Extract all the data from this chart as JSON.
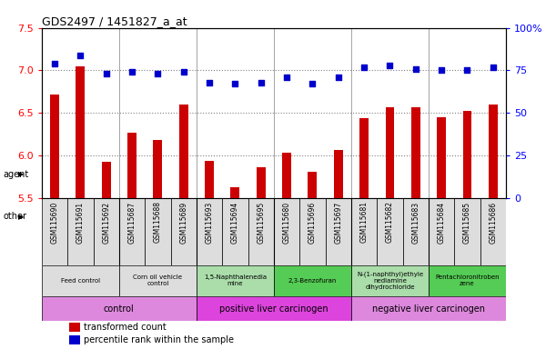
{
  "title": "GDS2497 / 1451827_a_at",
  "samples": [
    "GSM115690",
    "GSM115691",
    "GSM115692",
    "GSM115687",
    "GSM115688",
    "GSM115689",
    "GSM115693",
    "GSM115694",
    "GSM115695",
    "GSM115680",
    "GSM115696",
    "GSM115697",
    "GSM115681",
    "GSM115682",
    "GSM115683",
    "GSM115684",
    "GSM115685",
    "GSM115686"
  ],
  "transformed_count": [
    6.72,
    7.05,
    5.93,
    6.27,
    6.18,
    6.6,
    5.94,
    5.63,
    5.86,
    6.03,
    5.81,
    6.06,
    6.44,
    6.57,
    6.57,
    6.45,
    6.52,
    6.6
  ],
  "percentile_rank": [
    79,
    84,
    73,
    74,
    73,
    74,
    68,
    67,
    68,
    71,
    67,
    71,
    77,
    78,
    76,
    75,
    75,
    77
  ],
  "ylim_left": [
    5.5,
    7.5
  ],
  "ylim_right": [
    0,
    100
  ],
  "yticks_left": [
    5.5,
    6.0,
    6.5,
    7.0,
    7.5
  ],
  "yticks_right": [
    0,
    25,
    50,
    75,
    100
  ],
  "bar_color": "#cc0000",
  "dot_color": "#0000cc",
  "agent_groups": [
    {
      "label": "Feed control",
      "start": 0,
      "end": 3,
      "color": "#dddddd"
    },
    {
      "label": "Corn oil vehicle\ncontrol",
      "start": 3,
      "end": 6,
      "color": "#dddddd"
    },
    {
      "label": "1,5-Naphthalenedia\nmine",
      "start": 6,
      "end": 9,
      "color": "#aaddaa"
    },
    {
      "label": "2,3-Benzofuran",
      "start": 9,
      "end": 12,
      "color": "#55cc55"
    },
    {
      "label": "N-(1-naphthyl)ethyle\nnediamine\ndihydrochloride",
      "start": 12,
      "end": 15,
      "color": "#aaddaa"
    },
    {
      "label": "Pentachloronitroben\nzene",
      "start": 15,
      "end": 18,
      "color": "#55cc55"
    }
  ],
  "other_groups": [
    {
      "label": "control",
      "start": 0,
      "end": 6,
      "color": "#dd88dd"
    },
    {
      "label": "positive liver carcinogen",
      "start": 6,
      "end": 12,
      "color": "#dd44dd"
    },
    {
      "label": "negative liver carcinogen",
      "start": 12,
      "end": 18,
      "color": "#dd88dd"
    }
  ],
  "legend_bar_color": "#cc0000",
  "legend_dot_color": "#0000cc",
  "legend_bar_label": "transformed count",
  "legend_dot_label": "percentile rank within the sample",
  "bar_width": 0.35
}
